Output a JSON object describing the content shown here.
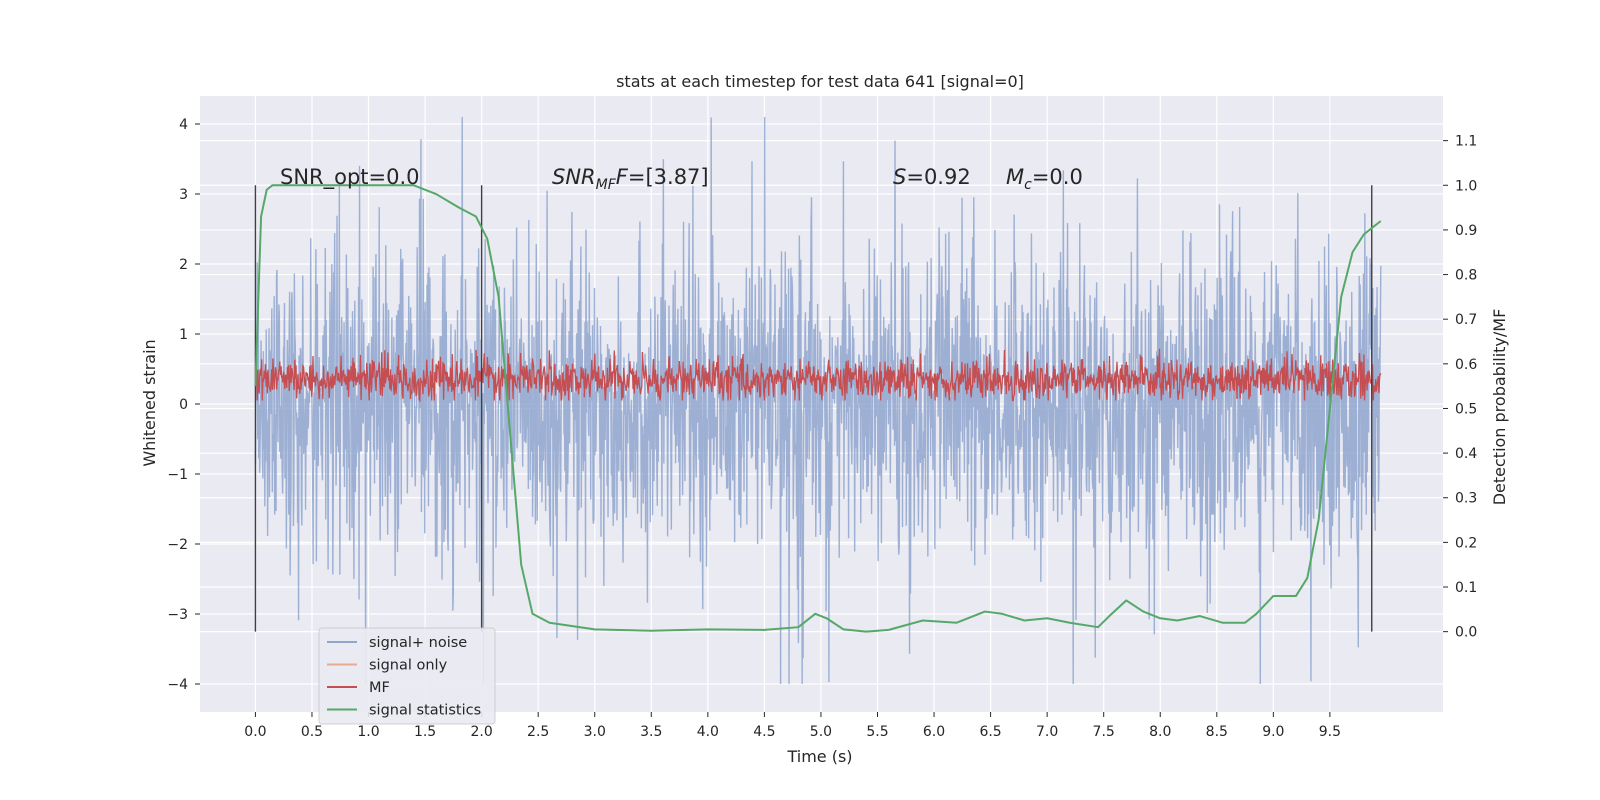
{
  "chart_data": {
    "type": "line",
    "title": "stats at each timestep for test data 641 [signal=0]",
    "xlabel": "Time (s)",
    "ylabel": "Whitened strain",
    "y2label": "Detection probability/MF",
    "xlim": [
      -0.49,
      10.5
    ],
    "ylim": [
      -4.4,
      4.4
    ],
    "y2lim": [
      -0.18,
      1.2
    ],
    "xticks": [
      0.0,
      0.5,
      1.0,
      1.5,
      2.0,
      2.5,
      3.0,
      3.5,
      4.0,
      4.5,
      5.0,
      5.5,
      6.0,
      6.5,
      7.0,
      7.5,
      8.0,
      8.5,
      9.0,
      9.5
    ],
    "xtick_labels": [
      "0.0",
      "0.5",
      "1.0",
      "1.5",
      "2.0",
      "2.5",
      "3.0",
      "3.5",
      "4.0",
      "4.5",
      "5.0",
      "5.5",
      "6.0",
      "6.5",
      "7.0",
      "7.5",
      "8.0",
      "8.5",
      "9.0",
      "9.5"
    ],
    "yticks": [
      -4,
      -3,
      -2,
      -1,
      0,
      1,
      2,
      3,
      4
    ],
    "ytick_labels": [
      "−4",
      "−3",
      "−2",
      "−1",
      "0",
      "1",
      "2",
      "3",
      "4"
    ],
    "y2ticks": [
      0.0,
      0.1,
      0.2,
      0.3,
      0.4,
      0.5,
      0.6,
      0.7,
      0.8,
      0.9,
      1.0,
      1.1
    ],
    "y2tick_labels": [
      "0.0",
      "0.1",
      "0.2",
      "0.3",
      "0.4",
      "0.5",
      "0.6",
      "0.7",
      "0.8",
      "0.9",
      "1.0",
      "1.1"
    ],
    "grid": true,
    "legend_position": "lower-left",
    "legend": [
      {
        "name": "signal+ noise",
        "color": "#8fa6cf"
      },
      {
        "name": "signal only",
        "color": "#e9a98c"
      },
      {
        "name": "MF",
        "color": "#c44e52"
      },
      {
        "name": "signal statistics",
        "color": "#55a868"
      }
    ],
    "annotations": {
      "snr_opt": "SNR_opt=0.0",
      "snr_mf_main": "SNR",
      "snr_mf_sub": "MF",
      "snr_mf_rest": "=[3.87]",
      "s_var": "S",
      "s_rest": "=0.92",
      "mc_main": "M",
      "mc_sub": "c",
      "mc_rest": "=0.0"
    },
    "vlines_x": [
      0.0,
      2.0,
      9.87
    ],
    "series": [
      {
        "name": "signal+ noise",
        "color": "#8fa6cf",
        "x_range": [
          0.0,
          9.95
        ],
        "y_range_approx": [
          -4.0,
          4.1
        ],
        "description_values": {
          "typical_band": [
            -1.6,
            1.6
          ]
        }
      },
      {
        "name": "MF",
        "color": "#c44e52",
        "x_range": [
          0.0,
          9.95
        ],
        "y_range_approx": [
          0.05,
          1.0
        ]
      },
      {
        "name": "signal statistics",
        "color": "#55a868",
        "axis": "right",
        "x": [
          0.0,
          0.05,
          0.1,
          0.15,
          0.25,
          0.5,
          1.0,
          1.4,
          1.6,
          1.8,
          1.95,
          2.05,
          2.15,
          2.25,
          2.35,
          2.45,
          2.6,
          3.0,
          3.5,
          4.0,
          4.5,
          4.8,
          4.95,
          5.05,
          5.2,
          5.4,
          5.6,
          5.9,
          6.2,
          6.45,
          6.6,
          6.8,
          7.0,
          7.2,
          7.45,
          7.55,
          7.7,
          7.85,
          8.0,
          8.15,
          8.35,
          8.55,
          8.75,
          8.85,
          9.0,
          9.1,
          9.2,
          9.3,
          9.4,
          9.5,
          9.6,
          9.7,
          9.8,
          9.9,
          9.95
        ],
        "y": [
          0.55,
          0.93,
          0.99,
          1.0,
          1.0,
          1.0,
          1.0,
          1.0,
          0.98,
          0.95,
          0.93,
          0.88,
          0.75,
          0.45,
          0.15,
          0.04,
          0.02,
          0.005,
          0.002,
          0.005,
          0.004,
          0.01,
          0.04,
          0.03,
          0.005,
          0.0,
          0.004,
          0.025,
          0.02,
          0.045,
          0.04,
          0.025,
          0.03,
          0.02,
          0.01,
          0.035,
          0.07,
          0.045,
          0.03,
          0.025,
          0.035,
          0.02,
          0.02,
          0.04,
          0.08,
          0.08,
          0.08,
          0.12,
          0.25,
          0.5,
          0.75,
          0.85,
          0.89,
          0.91,
          0.92
        ]
      }
    ]
  }
}
